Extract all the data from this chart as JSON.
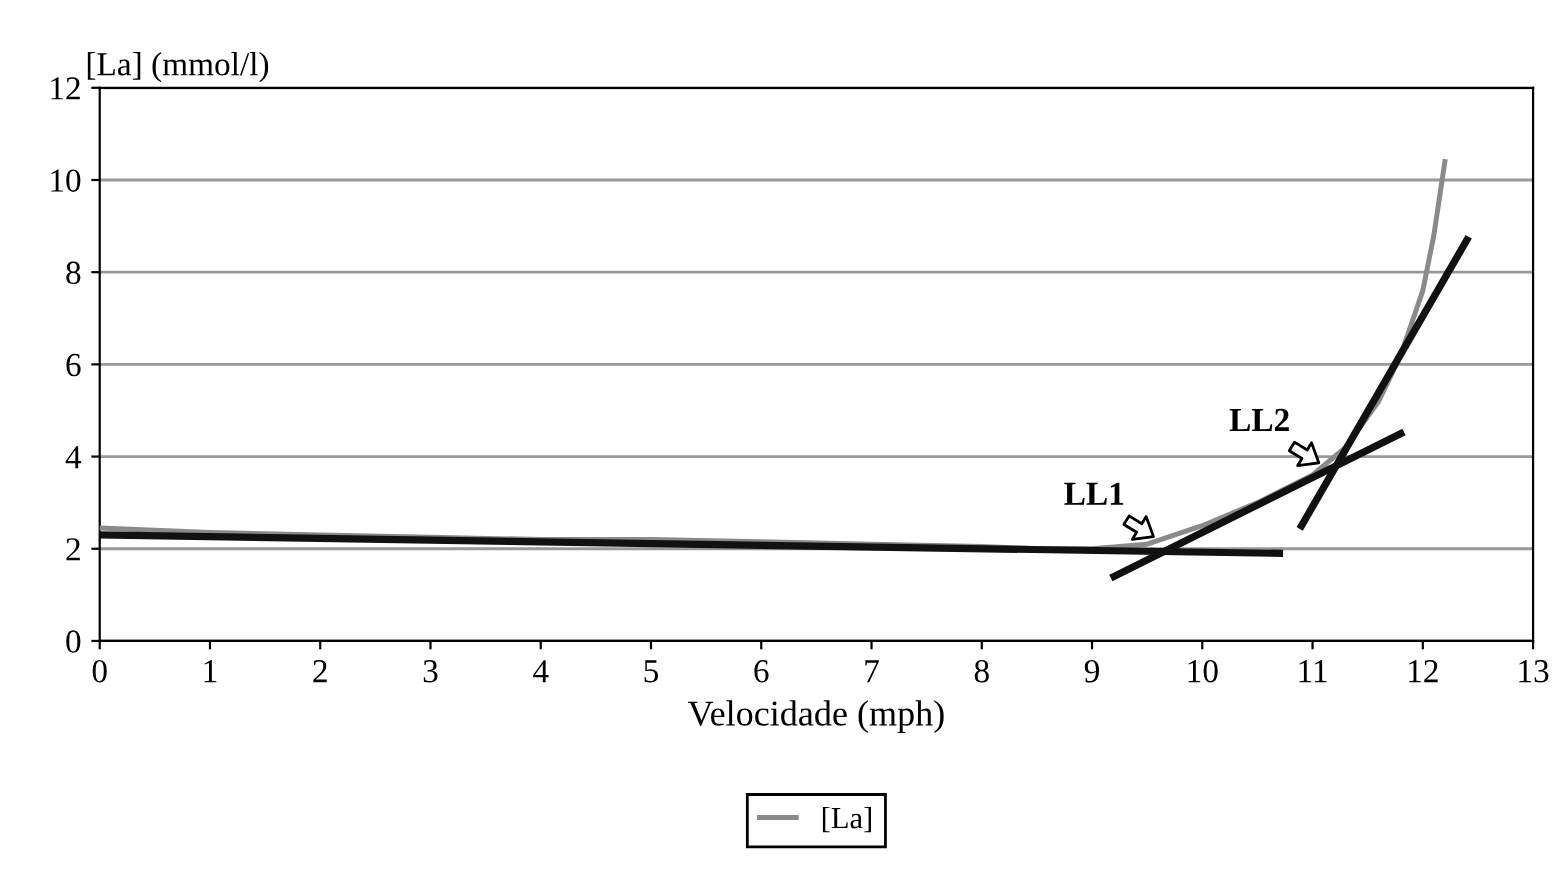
{
  "chart_data": {
    "type": "line",
    "xlabel": "Velocidade (mph)",
    "ylabel": "[La] (mmol/l)",
    "xlim": [
      0,
      13
    ],
    "xticks": [
      0,
      1,
      2,
      3,
      4,
      5,
      6,
      7,
      8,
      9,
      10,
      11,
      12,
      13
    ],
    "ylim": [
      0,
      12
    ],
    "yticks": [
      0,
      2,
      4,
      6,
      8,
      10,
      12
    ],
    "grid": "y",
    "legend": "bottom",
    "marker": "none",
    "line_style": "solid",
    "series": [
      {
        "name": "[La]",
        "color": "#8a8a8a",
        "x": [
          0,
          1,
          2,
          3,
          4,
          5,
          6,
          7,
          8,
          8.5,
          9,
          9.5,
          10,
          10.5,
          11,
          11.3,
          11.6,
          11.8,
          12,
          12.1,
          12.2
        ],
        "values": [
          2.45,
          2.35,
          2.3,
          2.25,
          2.2,
          2.2,
          2.15,
          2.1,
          2.05,
          2.0,
          2.0,
          2.1,
          2.5,
          3.0,
          3.6,
          4.2,
          5.2,
          6.2,
          7.6,
          8.8,
          10.4
        ]
      },
      {
        "color": "#111111",
        "x": [
          0,
          10.7
        ],
        "values": [
          2.3,
          1.9
        ]
      },
      {
        "color": "#111111",
        "x": [
          9.2,
          11.8
        ],
        "values": [
          1.4,
          4.5
        ]
      },
      {
        "color": "#111111",
        "x": [
          10.9,
          12.4
        ],
        "values": [
          2.5,
          8.7
        ]
      }
    ],
    "annotations": [
      {
        "text": "LL1",
        "x": 9.6,
        "y": 2.2
      },
      {
        "text": "LL2",
        "x": 11.1,
        "y": 3.8
      }
    ]
  }
}
